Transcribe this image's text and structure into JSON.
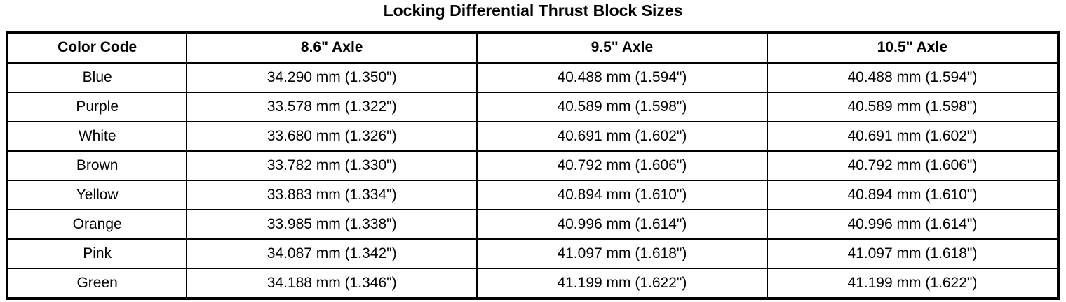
{
  "title": "Locking Differential Thrust Block Sizes",
  "table": {
    "headers": [
      "Color Code",
      "8.6\" Axle",
      "9.5\" Axle",
      "10.5\" Axle"
    ],
    "rows": [
      [
        "Blue",
        "34.290 mm (1.350\")",
        "40.488 mm (1.594\")",
        "40.488 mm (1.594\")"
      ],
      [
        "Purple",
        "33.578 mm (1.322\")",
        "40.589 mm (1.598\")",
        "40.589 mm (1.598\")"
      ],
      [
        "White",
        "33.680 mm (1.326\")",
        "40.691 mm (1.602\")",
        "40.691 mm (1.602\")"
      ],
      [
        "Brown",
        "33.782 mm (1.330\")",
        "40.792 mm (1.606\")",
        "40.792 mm (1.606\")"
      ],
      [
        "Yellow",
        "33.883 mm (1.334\")",
        "40.894 mm (1.610\")",
        "40.894 mm (1.610\")"
      ],
      [
        "Orange",
        "33.985 mm (1.338\")",
        "40.996 mm (1.614\")",
        "40.996 mm (1.614\")"
      ],
      [
        "Pink",
        "34.087 mm (1.342\")",
        "41.097 mm (1.618\")",
        "41.097 mm (1.618\")"
      ],
      [
        "Green",
        "34.188 mm (1.346\")",
        "41.199 mm (1.622\")",
        "41.199 mm (1.622\")"
      ]
    ]
  },
  "colors": {
    "text": "#000000",
    "border": "#000000",
    "background": "#ffffff"
  }
}
